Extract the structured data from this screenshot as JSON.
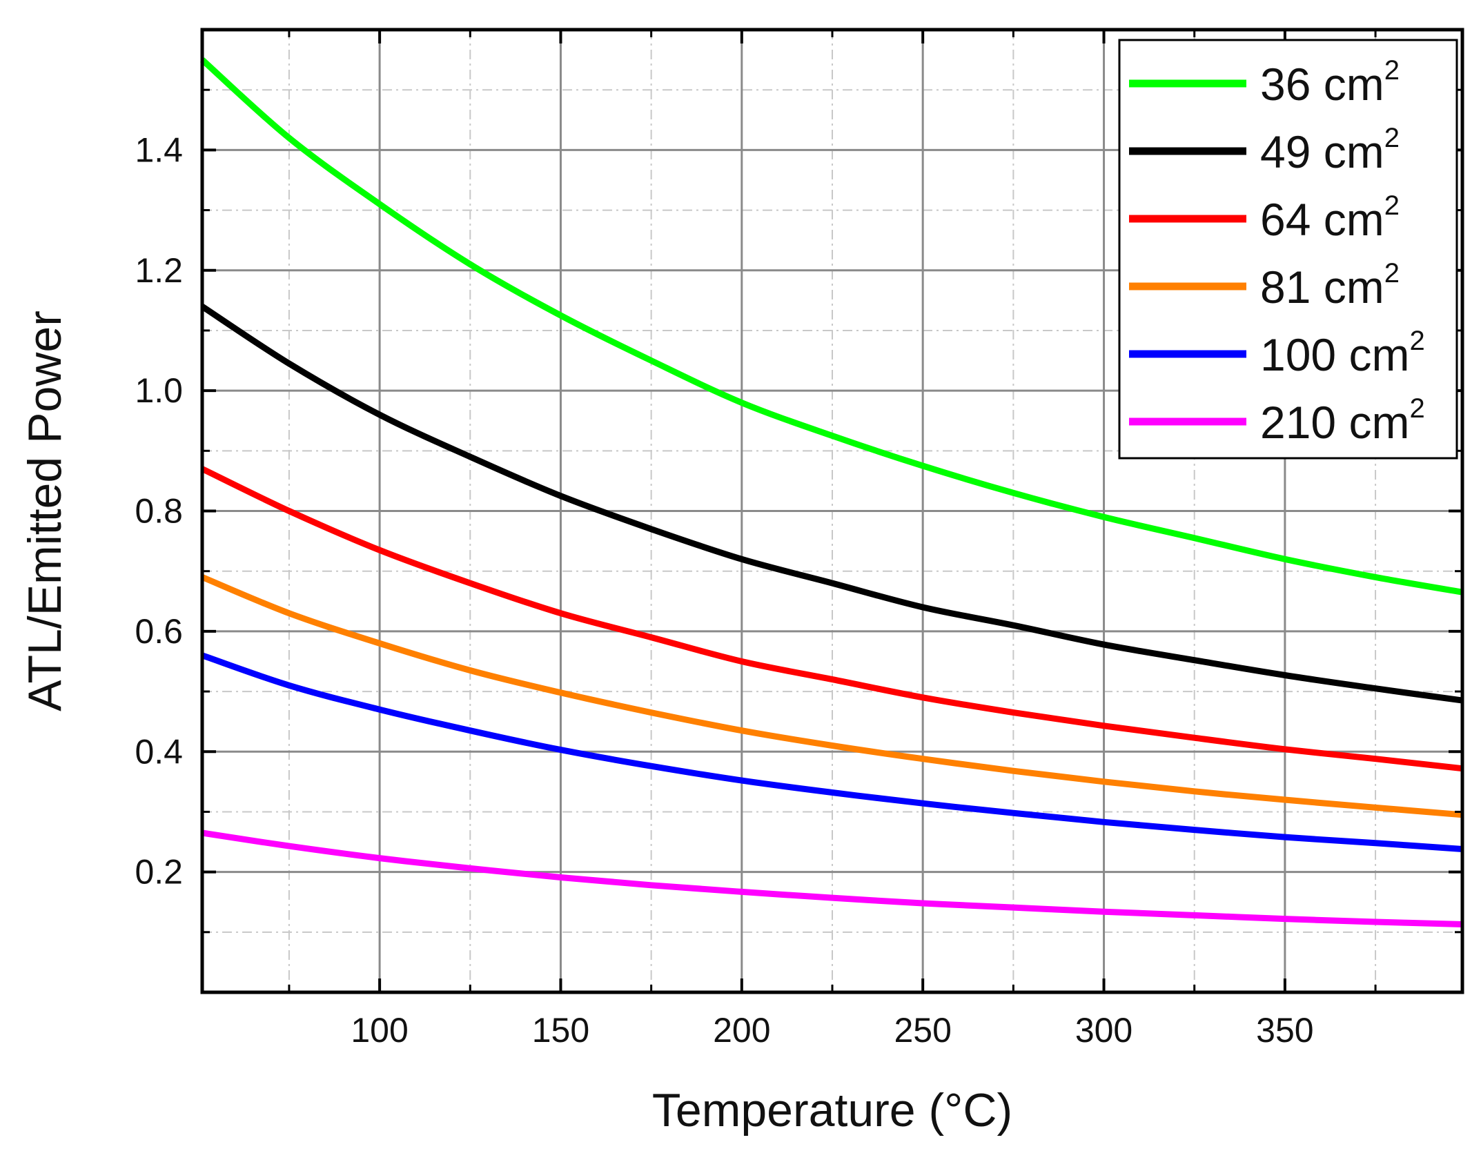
{
  "chart_data": {
    "type": "line",
    "title": "",
    "xlabel": "Temperature (°C)",
    "ylabel": "ATL/Emitted Power",
    "xlim": [
      51,
      399
    ],
    "ylim": [
      0,
      1.6
    ],
    "x_ticks": [
      100,
      150,
      200,
      250,
      300,
      350
    ],
    "x_tick_labels": [
      "100",
      "150",
      "200",
      "250",
      "300",
      "350"
    ],
    "x_minor_ticks": [
      75,
      125,
      175,
      225,
      275,
      325,
      375
    ],
    "y_ticks": [
      0.2,
      0.4,
      0.6,
      0.8,
      1.0,
      1.2,
      1.4
    ],
    "y_tick_labels": [
      "0.2",
      "0.4",
      "0.6",
      "0.8",
      "1.0",
      "1.2",
      "1.4"
    ],
    "y_minor_ticks": [
      0.1,
      0.3,
      0.5,
      0.7,
      0.9,
      1.1,
      1.3,
      1.5
    ],
    "grid": true,
    "legend_position": "top-right",
    "x": [
      51,
      75,
      100,
      125,
      150,
      175,
      200,
      225,
      250,
      275,
      300,
      325,
      350,
      375,
      399
    ],
    "series": [
      {
        "name": "36 cm",
        "superscript": "2",
        "color": "#00ff00",
        "values": [
          1.55,
          1.42,
          1.31,
          1.21,
          1.125,
          1.05,
          0.98,
          0.925,
          0.875,
          0.83,
          0.79,
          0.755,
          0.72,
          0.69,
          0.665
        ]
      },
      {
        "name": "49 cm",
        "superscript": "2",
        "color": "#000000",
        "values": [
          1.14,
          1.045,
          0.96,
          0.89,
          0.825,
          0.77,
          0.72,
          0.68,
          0.64,
          0.61,
          0.578,
          0.552,
          0.527,
          0.505,
          0.485
        ]
      },
      {
        "name": "64 cm",
        "superscript": "2",
        "color": "#ff0000",
        "values": [
          0.87,
          0.8,
          0.735,
          0.68,
          0.63,
          0.59,
          0.55,
          0.52,
          0.49,
          0.465,
          0.443,
          0.423,
          0.404,
          0.388,
          0.372
        ]
      },
      {
        "name": "81 cm",
        "superscript": "2",
        "color": "#ff8000",
        "values": [
          0.69,
          0.63,
          0.58,
          0.535,
          0.498,
          0.465,
          0.435,
          0.41,
          0.388,
          0.368,
          0.35,
          0.334,
          0.32,
          0.307,
          0.295
        ]
      },
      {
        "name": "100 cm",
        "superscript": "2",
        "color": "#0000ff",
        "values": [
          0.56,
          0.51,
          0.47,
          0.435,
          0.403,
          0.376,
          0.352,
          0.332,
          0.314,
          0.298,
          0.283,
          0.27,
          0.258,
          0.248,
          0.238
        ]
      },
      {
        "name": "210 cm",
        "superscript": "2",
        "color": "#ff00ff",
        "values": [
          0.265,
          0.243,
          0.223,
          0.206,
          0.191,
          0.178,
          0.167,
          0.157,
          0.148,
          0.141,
          0.134,
          0.128,
          0.122,
          0.117,
          0.113
        ]
      }
    ]
  }
}
